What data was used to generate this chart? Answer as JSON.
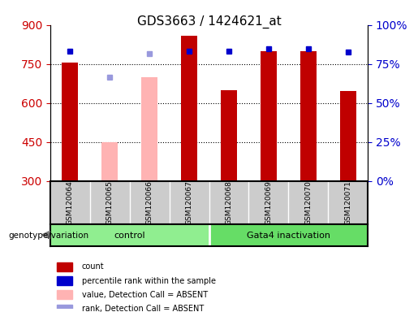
{
  "title": "GDS3663 / 1424621_at",
  "samples": [
    "GSM120064",
    "GSM120065",
    "GSM120066",
    "GSM120067",
    "GSM120068",
    "GSM120069",
    "GSM120070",
    "GSM120071"
  ],
  "count_values": [
    755,
    null,
    null,
    860,
    650,
    800,
    800,
    645
  ],
  "count_absent": [
    null,
    450,
    700,
    null,
    null,
    null,
    null,
    null
  ],
  "rank_values": [
    800,
    null,
    null,
    800,
    800,
    810,
    810,
    795
  ],
  "rank_absent": [
    null,
    700,
    790,
    null,
    null,
    null,
    null,
    null
  ],
  "ylim_left": [
    300,
    900
  ],
  "ylim_right": [
    0,
    100
  ],
  "yticks_left": [
    300,
    450,
    600,
    750,
    900
  ],
  "yticks_right": [
    0,
    25,
    50,
    75,
    100
  ],
  "ytick_labels_right": [
    "0%",
    "25%",
    "50%",
    "75%",
    "100%"
  ],
  "groups": [
    {
      "label": "control",
      "start": 0,
      "end": 3
    },
    {
      "label": "Gata4 inactivation",
      "start": 4,
      "end": 7
    }
  ],
  "group_colors": [
    "#90EE90",
    "#66CC66"
  ],
  "bar_color_normal": "#C00000",
  "bar_color_absent": "#FFB3B3",
  "dot_color_normal": "#0000CC",
  "dot_color_absent": "#9999DD",
  "bar_width": 0.4,
  "background_color": "#FFFFFF",
  "plot_bg_color": "#FFFFFF",
  "grid_color": "#000000",
  "tick_color_left": "#CC0000",
  "tick_color_right": "#0000CC",
  "xlabel_area_color": "#CCCCCC",
  "legend_items": [
    {
      "label": "count",
      "color": "#C00000",
      "marker": "s"
    },
    {
      "label": "percentile rank within the sample",
      "color": "#0000CC",
      "marker": "s"
    },
    {
      "label": "value, Detection Call = ABSENT",
      "color": "#FFB3B3",
      "marker": "s"
    },
    {
      "label": "rank, Detection Call = ABSENT",
      "color": "#9999DD",
      "marker": "s"
    }
  ]
}
